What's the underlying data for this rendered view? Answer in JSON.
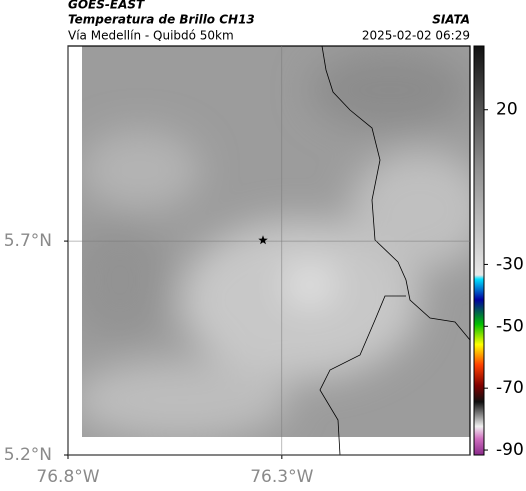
{
  "header": {
    "title": "GOES-EAST",
    "subtitle": "Temperatura de Brillo CH13",
    "region": "Vía Medellín - Quibdó 50km",
    "source": "SIATA",
    "datetime": "2025-02-02 06:29"
  },
  "map": {
    "xlim": [
      -76.8,
      -75.86
    ],
    "ylim": [
      5.2,
      6.156
    ],
    "xticks": [
      {
        "value": -76.8,
        "label": "76.8°W"
      },
      {
        "value": -76.3,
        "label": "76.3°W"
      }
    ],
    "yticks": [
      {
        "value": 5.2,
        "label": "5.2°N"
      },
      {
        "value": 5.7,
        "label": "5.7°N"
      }
    ],
    "grid": true,
    "marker": {
      "lon": -76.344,
      "lat": 5.702
    }
  },
  "colorbar": {
    "lim": [
      -91.6,
      40.6
    ],
    "ticks": [
      20,
      -30,
      -50,
      -70,
      -90
    ]
  }
}
